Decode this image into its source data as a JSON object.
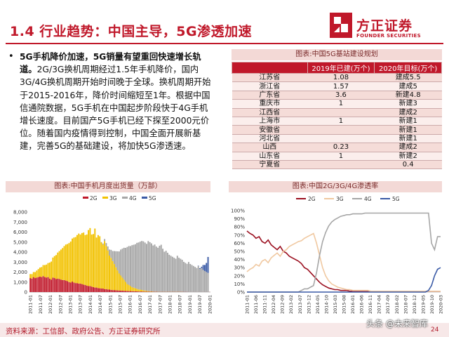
{
  "header": {
    "title": "1.4 行业趋势：中国主导，5G渗透加速",
    "logo_name": "方正证券",
    "logo_sub": "FOUNDER SECURITIES"
  },
  "bullet": {
    "lead": "5G手机降价加速，5G销量有望重回快速增长轨道。",
    "body": "2G/3G换机周期经过1.5年手机降价，国内3G/4G换机周期开始时间晚于全球。换机周期开始于2015-2016年，降价时间缩短至1年。根据中国信通院数据，5G手机在中国起步阶段快于4G手机增长速度。目前国产5G手机已经下探至2000元价位。随着国内疫情得到控制，中国全面开展新基建，完善5G的基础建设，将加快5G渗透速。"
  },
  "table": {
    "title": "图表:中国5G基站建设规划",
    "headers": [
      "",
      "2019年已建(万个)",
      "2020年目标(万个)"
    ],
    "rows": [
      [
        "江苏省",
        "1.08",
        "建成5.5"
      ],
      [
        "浙江省",
        "1.57",
        "建成5"
      ],
      [
        "广东省",
        "3.6",
        "新建4.8"
      ],
      [
        "重庆市",
        "1",
        "新建3"
      ],
      [
        "江西省",
        "",
        "建成2"
      ],
      [
        "上海市",
        "1",
        "新建1"
      ],
      [
        "安徽省",
        "",
        "新建1"
      ],
      [
        "河北省",
        "",
        "新建1"
      ],
      [
        "山西",
        "0.23",
        "建成2"
      ],
      [
        "山东省",
        "1",
        "新建2"
      ],
      [
        "宁夏省",
        "",
        "0.4"
      ]
    ]
  },
  "chart_data": [
    {
      "type": "bar",
      "title": "图表:中国手机月度出货量（万部）",
      "legend": [
        "2G",
        "3G",
        "4G",
        "5G"
      ],
      "colors": {
        "2G": "#c0182a",
        "3G": "#f2c200",
        "4G": "#a6a6a6",
        "5G": "#3a5aa6"
      },
      "ylim": [
        0,
        8000
      ],
      "yticks": [
        "0",
        "1,000",
        "2,000",
        "3,000",
        "4,000",
        "5,000",
        "6,000",
        "7,000",
        "8,000"
      ],
      "xticks": [
        "2011-01",
        "2011-07",
        "2012-01",
        "2012-07",
        "2013-01",
        "2013-07",
        "2014-01",
        "2014-07",
        "2015-01",
        "2015-07",
        "2016-01",
        "2016-07",
        "2017-01",
        "2017-07",
        "2018-01",
        "2018-07",
        "2019-01",
        "2019-07",
        "2020-01"
      ],
      "legend_position": "top-left",
      "series": [
        {
          "name": "2G",
          "values": [
            1400,
            1350,
            1500,
            1400,
            1450,
            1500,
            1550,
            1500,
            1600,
            1500,
            1450,
            1500,
            1350,
            1250,
            1450,
            1400,
            1300,
            1350,
            1300,
            1250,
            1200,
            1200,
            1150,
            1100,
            1000,
            950,
            1050,
            950,
            900,
            900,
            850,
            850,
            800,
            750,
            700,
            650,
            600,
            600,
            550,
            500,
            450,
            450,
            400,
            380,
            350,
            350,
            300,
            300,
            260,
            250,
            220,
            200,
            200,
            180,
            170,
            160,
            150,
            140,
            130,
            120,
            110,
            100,
            100,
            90,
            80,
            80,
            70,
            60,
            60,
            60,
            50,
            50,
            40,
            40,
            40,
            30,
            30,
            30,
            30,
            20,
            20,
            20,
            20,
            20,
            20,
            20,
            20,
            20,
            20,
            20,
            20,
            20,
            20,
            20,
            20,
            20,
            20,
            20,
            10,
            10,
            10,
            10,
            10,
            10,
            10,
            10,
            10,
            10,
            10,
            10,
            10,
            10
          ]
        },
        {
          "name": "3G",
          "values": [
            400,
            450,
            500,
            600,
            700,
            800,
            900,
            1000,
            1100,
            1200,
            1300,
            1400,
            1600,
            1800,
            2000,
            2200,
            2400,
            2600,
            2800,
            3000,
            3200,
            3400,
            3600,
            3700,
            3900,
            4100,
            4300,
            4500,
            4600,
            4800,
            5000,
            4900,
            5100,
            5200,
            5000,
            5100,
            5600,
            5800,
            5200,
            5300,
            5900,
            5000,
            5300,
            5200,
            4600,
            4400,
            4800,
            4300,
            3900,
            3400,
            3200,
            2900,
            2600,
            2300,
            2000,
            1700,
            1500,
            1300,
            1100,
            900,
            700,
            600,
            500,
            400,
            350,
            300,
            250,
            200,
            180,
            150,
            120,
            100,
            80,
            60,
            50,
            40,
            30,
            20,
            20,
            10,
            10,
            10,
            10,
            10,
            10,
            10,
            10,
            10,
            10,
            10,
            10,
            10,
            10,
            10,
            10,
            0,
            0,
            0,
            0,
            0,
            0,
            0,
            0,
            0,
            0,
            0,
            0,
            0,
            0,
            0
          ]
        },
        {
          "name": "4G",
          "values": [
            0,
            0,
            0,
            0,
            0,
            0,
            0,
            0,
            0,
            0,
            0,
            0,
            0,
            0,
            0,
            0,
            0,
            0,
            0,
            0,
            0,
            0,
            0,
            0,
            0,
            0,
            0,
            0,
            0,
            0,
            0,
            0,
            0,
            0,
            0,
            0,
            0,
            0,
            0,
            0,
            0,
            0,
            0,
            0,
            50,
            100,
            200,
            300,
            400,
            600,
            800,
            1000,
            1300,
            1600,
            1900,
            2200,
            2600,
            2900,
            3200,
            3400,
            3700,
            3900,
            4000,
            4200,
            4300,
            4400,
            4600,
            4700,
            4800,
            4900,
            4900,
            4800,
            4700,
            5000,
            4900,
            4800,
            4600,
            4700,
            4500,
            4400,
            4600,
            4700,
            4300,
            4000,
            4100,
            3900,
            3700,
            3600,
            3500,
            3400,
            3300,
            3600,
            3400,
            3300,
            3200,
            3000,
            2900,
            2800,
            3000,
            2800,
            2700,
            2600,
            2500,
            2400,
            2600,
            2300,
            2400,
            2200,
            2100,
            2000,
            1900
          ]
        },
        {
          "name": "5G",
          "values": [
            0,
            0,
            0,
            0,
            0,
            0,
            0,
            0,
            0,
            0,
            0,
            0,
            0,
            0,
            0,
            0,
            0,
            0,
            0,
            0,
            0,
            0,
            0,
            0,
            0,
            0,
            0,
            0,
            0,
            0,
            0,
            0,
            0,
            0,
            0,
            0,
            0,
            0,
            0,
            0,
            0,
            0,
            0,
            0,
            0,
            0,
            0,
            0,
            0,
            0,
            0,
            0,
            0,
            0,
            0,
            0,
            0,
            0,
            0,
            0,
            0,
            0,
            0,
            0,
            0,
            0,
            0,
            0,
            0,
            0,
            0,
            0,
            0,
            0,
            0,
            0,
            0,
            0,
            0,
            0,
            0,
            0,
            0,
            0,
            0,
            0,
            0,
            0,
            0,
            0,
            0,
            0,
            0,
            0,
            0,
            0,
            0,
            0,
            0,
            0,
            0,
            0,
            0,
            0,
            30,
            80,
            120,
            500,
            600,
            900,
            1600
          ]
        }
      ]
    },
    {
      "type": "line",
      "title": "图表:中国2G/3G/4G渗透率",
      "legend": [
        "2G",
        "3G",
        "4G",
        "5G"
      ],
      "colors": {
        "2G": "#9b0f1f",
        "3G": "#f0c8a0",
        "4G": "#a6a6a6",
        "5G": "#3a5aa6"
      },
      "ylim": [
        0,
        100
      ],
      "yticks": [
        "0%",
        "10%",
        "20%",
        "30%",
        "40%",
        "50%",
        "60%",
        "70%",
        "80%",
        "90%",
        "100%"
      ],
      "xticks": [
        "2011-01",
        "2011-06",
        "2011-11",
        "2012-04",
        "2012-09",
        "2013-02",
        "2013-07",
        "2013-12",
        "2014-05",
        "2014-10",
        "2015-03",
        "2015-08",
        "2016-01",
        "2016-06",
        "2016-11",
        "2017-04",
        "2017-09",
        "2018-02",
        "2018-07",
        "2018-12",
        "2019-05",
        "2019-10",
        "2020-03"
      ],
      "legend_position": "top",
      "series": [
        {
          "name": "2G",
          "values": [
            75,
            72,
            70,
            66,
            68,
            62,
            60,
            64,
            58,
            55,
            52,
            56,
            50,
            48,
            44,
            42,
            40,
            38,
            35,
            30,
            28,
            24,
            20,
            16,
            12,
            9,
            7,
            5,
            4,
            3,
            3,
            2,
            2,
            2,
            1,
            1,
            1,
            1,
            1,
            1,
            1,
            1,
            1,
            1,
            1,
            1,
            1,
            1,
            1,
            1,
            1,
            1,
            1,
            1,
            1,
            1,
            1,
            1,
            1,
            1,
            1,
            1,
            1,
            1,
            1
          ]
        },
        {
          "name": "3G",
          "values": [
            25,
            28,
            30,
            34,
            32,
            38,
            40,
            36,
            42,
            45,
            48,
            44,
            50,
            52,
            56,
            58,
            60,
            62,
            63,
            66,
            68,
            70,
            72,
            60,
            45,
            30,
            20,
            14,
            10,
            8,
            6,
            5,
            4,
            3,
            3,
            2,
            2,
            2,
            2,
            2,
            2,
            1,
            1,
            1,
            1,
            1,
            1,
            1,
            1,
            1,
            1,
            1,
            1,
            1,
            1,
            1,
            1,
            1,
            1,
            1,
            1,
            1,
            1,
            1,
            1
          ]
        },
        {
          "name": "4G",
          "values": [
            0,
            0,
            0,
            0,
            0,
            0,
            0,
            0,
            0,
            0,
            0,
            0,
            0,
            0,
            0,
            0,
            0,
            0,
            2,
            4,
            4,
            6,
            8,
            24,
            45,
            62,
            73,
            81,
            86,
            89,
            91,
            93,
            94,
            95,
            95,
            96,
            96,
            96,
            96,
            97,
            97,
            97,
            97,
            97,
            97,
            97,
            97,
            97,
            97,
            97,
            97,
            97,
            97,
            97,
            97,
            97,
            97,
            97,
            97,
            97,
            97,
            60,
            52,
            68,
            68
          ]
        },
        {
          "name": "5G",
          "values": [
            0,
            0,
            0,
            0,
            0,
            0,
            0,
            0,
            0,
            0,
            0,
            0,
            0,
            0,
            0,
            0,
            0,
            0,
            0,
            0,
            0,
            0,
            0,
            0,
            0,
            0,
            0,
            0,
            0,
            0,
            0,
            0,
            0,
            0,
            0,
            0,
            0,
            0,
            0,
            0,
            0,
            0,
            0,
            0,
            0,
            0,
            0,
            0,
            0,
            0,
            0,
            0,
            0,
            0,
            0,
            0,
            0,
            0,
            0,
            0,
            2,
            8,
            20,
            28,
            30
          ]
        }
      ]
    }
  ],
  "footer": {
    "source": "资料来源：工信部、政府公告、方正证券研究所",
    "page": "24",
    "watermark": "头条 @未来智库"
  }
}
